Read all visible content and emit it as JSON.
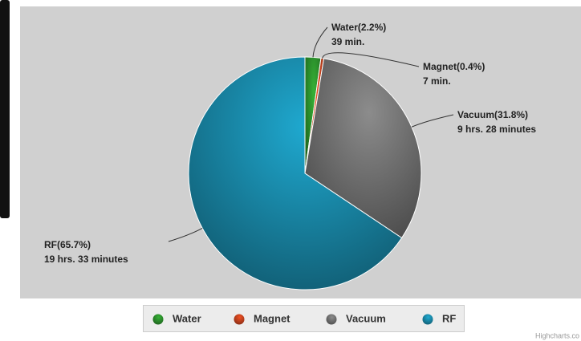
{
  "chart_data": {
    "type": "pie",
    "categories": [
      "Water",
      "Magnet",
      "Vacuum",
      "RF"
    ],
    "values": [
      2.2,
      0.4,
      31.8,
      65.7
    ],
    "value_labels": [
      "Water(2.2%)",
      "Magnet(0.4%)",
      "Vacuum(31.8%)",
      "RF(65.7%)"
    ],
    "durations": [
      "39 min.",
      "7 min.",
      "9 hrs. 28 minutes",
      "19 hrs. 33 minutes"
    ],
    "colors": [
      "#2f9a2f",
      "#d2461f",
      "#7a7a7a",
      "#1b93b5"
    ],
    "legend": "bottom",
    "credit": "Highcharts.co"
  }
}
